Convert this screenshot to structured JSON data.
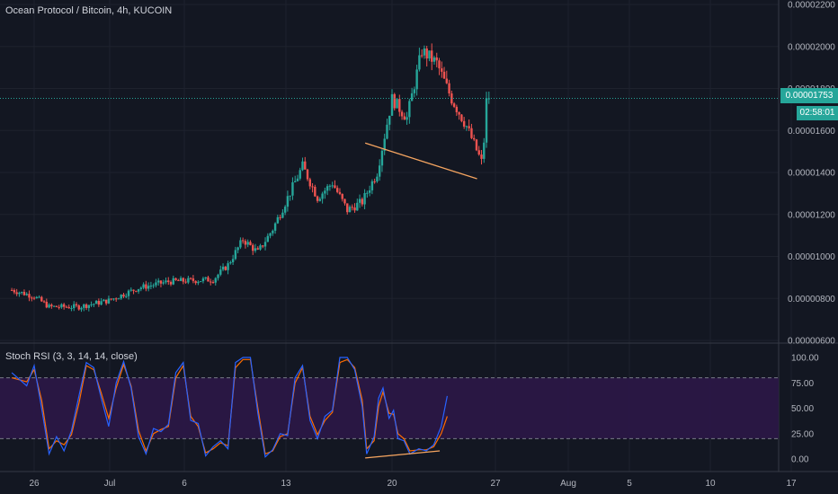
{
  "header": {
    "title": "Ocean Protocol / Bitcoin, 4h, KUCOIN"
  },
  "indicator": {
    "title": "Stoch RSI (3, 3, 14, 14, close)"
  },
  "last_price": {
    "value": "0.00001753",
    "countdown": "02:58:01"
  },
  "colors": {
    "background": "#131722",
    "up": "#26a69a",
    "down": "#ef5350",
    "k_line": "#2962ff",
    "d_line": "#ff6d00",
    "band": "#2a1746",
    "trendline": "#f4a460"
  },
  "chart_data": [
    {
      "type": "candlestick",
      "title": "Ocean Protocol / Bitcoin, 4h, KUCOIN",
      "x_ticks": [
        "26",
        "Jul",
        "6",
        "13",
        "20",
        "27",
        "Aug",
        "5",
        "10",
        "17"
      ],
      "y_ticks": [
        "0.00002200",
        "0.00002000",
        "0.00001800",
        "0.00001600",
        "0.00001400",
        "0.00001200",
        "0.00001000",
        "0.00000800",
        "0.00000600"
      ],
      "ylim": [
        6e-06,
        2.2e-05
      ],
      "guide_points": [
        {
          "x": -1.5,
          "close": 8.4e-06
        },
        {
          "x": 0,
          "close": 8.1e-06
        },
        {
          "x": 1,
          "close": 7.6e-06
        },
        {
          "x": 3,
          "close": 7.6e-06
        },
        {
          "x": 5,
          "close": 7.9e-06
        },
        {
          "x": 7,
          "close": 8.5e-06
        },
        {
          "x": 9,
          "close": 8.8e-06
        },
        {
          "x": 12,
          "close": 8.9e-06
        },
        {
          "x": 13,
          "close": 9.6e-06
        },
        {
          "x": 14,
          "close": 1.08e-05
        },
        {
          "x": 15,
          "close": 1.02e-05
        },
        {
          "x": 16,
          "close": 1.13e-05
        },
        {
          "x": 17,
          "close": 1.28e-05
        },
        {
          "x": 18,
          "close": 1.43e-05
        },
        {
          "x": 19,
          "close": 1.28e-05
        },
        {
          "x": 20,
          "close": 1.35e-05
        },
        {
          "x": 21,
          "close": 1.22e-05
        },
        {
          "x": 22,
          "close": 1.26e-05
        },
        {
          "x": 23,
          "close": 1.4e-05
        },
        {
          "x": 24,
          "close": 1.75e-05
        },
        {
          "x": 25,
          "close": 1.66e-05
        },
        {
          "x": 26,
          "close": 1.98e-05
        },
        {
          "x": 27,
          "close": 1.92e-05
        },
        {
          "x": 28,
          "close": 1.75e-05
        },
        {
          "x": 29,
          "close": 1.62e-05
        },
        {
          "x": 30,
          "close": 1.45e-05
        },
        {
          "x": 30.5,
          "close": 1.75e-05
        }
      ],
      "trendline": {
        "x1": 22.2,
        "y1": 1.54e-05,
        "x2": 29.7,
        "y2": 1.37e-05
      },
      "last_price": 1.753e-05
    },
    {
      "type": "line",
      "title": "Stoch RSI (3, 3, 14, 14, close)",
      "y_ticks": [
        "100.00",
        "75.00",
        "50.00",
        "25.00",
        "0.00"
      ],
      "ylim": [
        -5,
        105
      ],
      "bands": [
        20,
        80
      ],
      "series_k_points": [
        [
          -1.5,
          85
        ],
        [
          -0.5,
          72
        ],
        [
          0,
          92
        ],
        [
          0.5,
          50
        ],
        [
          1,
          5
        ],
        [
          1.5,
          22
        ],
        [
          2,
          8
        ],
        [
          2.5,
          28
        ],
        [
          3,
          62
        ],
        [
          3.5,
          95
        ],
        [
          4,
          90
        ],
        [
          4.5,
          60
        ],
        [
          5,
          32
        ],
        [
          5.5,
          75
        ],
        [
          6,
          96
        ],
        [
          6.5,
          70
        ],
        [
          7,
          22
        ],
        [
          7.5,
          5
        ],
        [
          8,
          30
        ],
        [
          8.5,
          27
        ],
        [
          9,
          34
        ],
        [
          9.5,
          85
        ],
        [
          10,
          95
        ],
        [
          10.5,
          38
        ],
        [
          11,
          35
        ],
        [
          11.5,
          3
        ],
        [
          12,
          12
        ],
        [
          12.5,
          18
        ],
        [
          13,
          10
        ],
        [
          13.5,
          95
        ],
        [
          14,
          100
        ],
        [
          14.5,
          100
        ],
        [
          15,
          45
        ],
        [
          15.5,
          2
        ],
        [
          16,
          9
        ],
        [
          16.5,
          25
        ],
        [
          17,
          23
        ],
        [
          17.5,
          80
        ],
        [
          18,
          92
        ],
        [
          18.5,
          38
        ],
        [
          19,
          20
        ],
        [
          19.5,
          42
        ],
        [
          20,
          48
        ],
        [
          20.5,
          100
        ],
        [
          21,
          100
        ],
        [
          21.5,
          88
        ],
        [
          22,
          52
        ],
        [
          22.3,
          5
        ],
        [
          22.8,
          22
        ],
        [
          23.1,
          60
        ],
        [
          23.4,
          70
        ],
        [
          23.8,
          40
        ],
        [
          24.1,
          48
        ],
        [
          24.4,
          20
        ],
        [
          24.8,
          18
        ],
        [
          25.2,
          5
        ],
        [
          25.8,
          10
        ],
        [
          26.3,
          8
        ],
        [
          26.8,
          14
        ],
        [
          27.3,
          32
        ],
        [
          27.7,
          62
        ]
      ],
      "series_d_points": [
        [
          -1.5,
          80
        ],
        [
          -0.5,
          76
        ],
        [
          0,
          88
        ],
        [
          0.5,
          58
        ],
        [
          1,
          10
        ],
        [
          1.5,
          18
        ],
        [
          2,
          14
        ],
        [
          2.5,
          24
        ],
        [
          3,
          55
        ],
        [
          3.5,
          92
        ],
        [
          4,
          88
        ],
        [
          4.5,
          65
        ],
        [
          5,
          40
        ],
        [
          5.5,
          70
        ],
        [
          6,
          93
        ],
        [
          6.5,
          72
        ],
        [
          7,
          28
        ],
        [
          7.5,
          8
        ],
        [
          8,
          25
        ],
        [
          8.5,
          29
        ],
        [
          9,
          32
        ],
        [
          9.5,
          80
        ],
        [
          10,
          92
        ],
        [
          10.5,
          42
        ],
        [
          11,
          32
        ],
        [
          11.5,
          6
        ],
        [
          12,
          10
        ],
        [
          12.5,
          16
        ],
        [
          13,
          13
        ],
        [
          13.5,
          90
        ],
        [
          14,
          98
        ],
        [
          14.5,
          98
        ],
        [
          15,
          50
        ],
        [
          15.5,
          5
        ],
        [
          16,
          8
        ],
        [
          16.5,
          22
        ],
        [
          17,
          25
        ],
        [
          17.5,
          75
        ],
        [
          18,
          90
        ],
        [
          18.5,
          42
        ],
        [
          19,
          24
        ],
        [
          19.5,
          38
        ],
        [
          20,
          46
        ],
        [
          20.5,
          95
        ],
        [
          21,
          98
        ],
        [
          21.5,
          90
        ],
        [
          22,
          58
        ],
        [
          22.3,
          10
        ],
        [
          22.8,
          18
        ],
        [
          23.1,
          52
        ],
        [
          23.4,
          66
        ],
        [
          23.8,
          45
        ],
        [
          24.1,
          44
        ],
        [
          24.4,
          25
        ],
        [
          24.8,
          20
        ],
        [
          25.2,
          8
        ],
        [
          25.8,
          9
        ],
        [
          26.3,
          9
        ],
        [
          26.8,
          12
        ],
        [
          27.3,
          25
        ],
        [
          27.7,
          42
        ]
      ],
      "trendline": {
        "x1": 22.2,
        "y1": 1,
        "x2": 27.2,
        "y2": 8
      }
    }
  ]
}
